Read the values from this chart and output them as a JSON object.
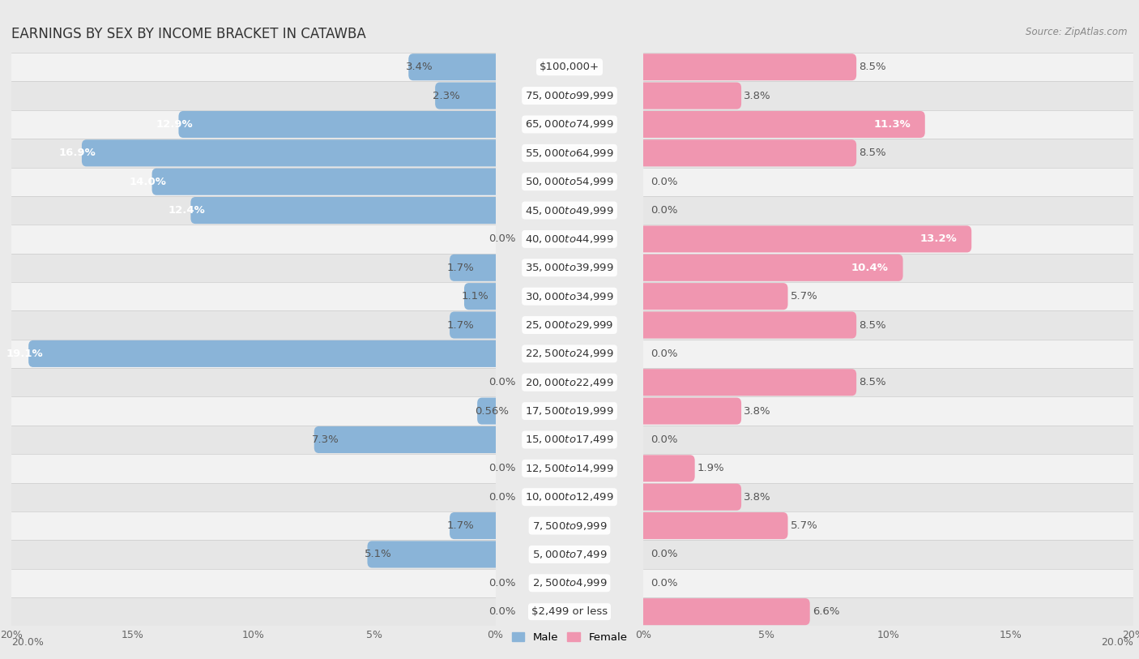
{
  "title": "EARNINGS BY SEX BY INCOME BRACKET IN CATAWBA",
  "source": "Source: ZipAtlas.com",
  "categories": [
    "$2,499 or less",
    "$2,500 to $4,999",
    "$5,000 to $7,499",
    "$7,500 to $9,999",
    "$10,000 to $12,499",
    "$12,500 to $14,999",
    "$15,000 to $17,499",
    "$17,500 to $19,999",
    "$20,000 to $22,499",
    "$22,500 to $24,999",
    "$25,000 to $29,999",
    "$30,000 to $34,999",
    "$35,000 to $39,999",
    "$40,000 to $44,999",
    "$45,000 to $49,999",
    "$50,000 to $54,999",
    "$55,000 to $64,999",
    "$65,000 to $74,999",
    "$75,000 to $99,999",
    "$100,000+"
  ],
  "male": [
    0.0,
    0.0,
    5.1,
    1.7,
    0.0,
    0.0,
    7.3,
    0.56,
    0.0,
    19.1,
    1.7,
    1.1,
    1.7,
    0.0,
    12.4,
    14.0,
    16.9,
    12.9,
    2.3,
    3.4
  ],
  "female": [
    6.6,
    0.0,
    0.0,
    5.7,
    3.8,
    1.9,
    0.0,
    3.8,
    8.5,
    0.0,
    8.5,
    5.7,
    10.4,
    13.2,
    0.0,
    0.0,
    8.5,
    11.3,
    3.8,
    8.5
  ],
  "male_color": "#8ab4d8",
  "female_color": "#f096b0",
  "bg_color": "#eaeaea",
  "row_color_odd": "#f5f5f5",
  "row_color_even": "#e8e8e8",
  "xlim": 20.0,
  "bar_height": 0.55,
  "title_fontsize": 12,
  "label_fontsize": 9.5,
  "tick_fontsize": 9,
  "category_fontsize": 9.5,
  "male_label_inside_color": "white",
  "male_label_outside_color": "#555555",
  "female_label_inside_color": "white",
  "female_label_outside_color": "#555555",
  "inside_threshold": 10.0
}
